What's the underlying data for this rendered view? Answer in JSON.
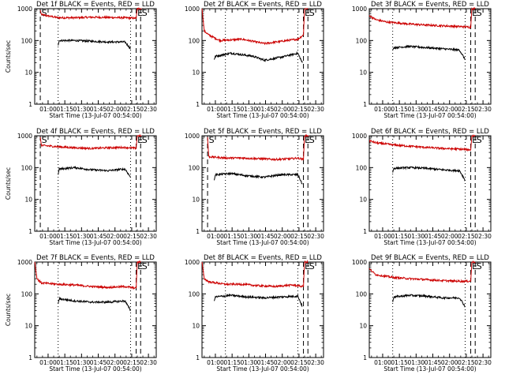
{
  "figure": {
    "panels": [
      {
        "title": "Det 1f BLACK = Events, RED = LLD"
      },
      {
        "title": "Det 2f BLACK = Events, RED = LLD"
      },
      {
        "title": "Det 3f BLACK = Events, RED = LLD"
      },
      {
        "title": "Det 4f BLACK = Events, RED = LLD"
      },
      {
        "title": "Det 5f BLACK = Events, RED = LLD"
      },
      {
        "title": "Det 6f BLACK = Events, RED = LLD"
      },
      {
        "title": "Det 7f BLACK = Events, RED = LLD"
      },
      {
        "title": "Det 8f BLACK = Events, RED = LLD"
      },
      {
        "title": "Det 9f BLACK = Events, RED = LLD"
      }
    ]
  },
  "chart_data": [
    {
      "type": "line",
      "title": "Det 1f BLACK = Events, RED = LLD",
      "ylabel": "Counts/sec",
      "xlabel": "Start Time (13-Jul-07 00:54:00)",
      "x_tick_labels": [
        "01:00",
        "01:15",
        "01:30",
        "01:45",
        "02:00",
        "02:15",
        "02:30"
      ],
      "y_tick_labels": [
        "1",
        "10",
        "100",
        "1000"
      ],
      "xlim_minutes": [
        -6,
        103
      ],
      "ylim": [
        1,
        1000
      ],
      "yscale": "log",
      "markers": [
        {
          "label": "S",
          "x_min": -1,
          "style": "dashed"
        },
        {
          "label": "E",
          "x_min": 85,
          "style": "dashed"
        },
        {
          "label": "S",
          "x_min": 89,
          "style": "dashed"
        }
      ],
      "dotted_lines_x_min": [
        15,
        80
      ],
      "series": [
        {
          "color": "#cc0000",
          "x_min": [
            -1,
            0,
            5,
            15,
            30,
            45,
            60,
            75,
            85,
            86,
            89,
            90
          ],
          "values": [
            900,
            650,
            600,
            520,
            520,
            540,
            530,
            520,
            500,
            1000,
            1000,
            1000
          ]
        },
        {
          "color": "#000000",
          "x_min": [
            15,
            16,
            30,
            45,
            60,
            75,
            80
          ],
          "values": [
            70,
            100,
            100,
            95,
            90,
            90,
            55
          ]
        }
      ]
    },
    {
      "type": "line",
      "title": "Det 2f BLACK = Events, RED = LLD",
      "ylabel": "",
      "xlabel": "Start Time (13-Jul-07 00:54:00)",
      "x_tick_labels": [
        "01:00",
        "01:15",
        "01:30",
        "01:45",
        "02:00",
        "02:15",
        "02:30"
      ],
      "y_tick_labels": [
        "1",
        "10",
        "100",
        "1000"
      ],
      "xlim_minutes": [
        -6,
        103
      ],
      "ylim": [
        1,
        1000
      ],
      "yscale": "log",
      "markers": [
        {
          "label": "E",
          "x_min": 85,
          "style": "dashed"
        },
        {
          "label": "S",
          "x_min": 89,
          "style": "dashed"
        }
      ],
      "dotted_lines_x_min": [
        15,
        80
      ],
      "series": [
        {
          "color": "#cc0000",
          "x_min": [
            -6,
            -4,
            0,
            10,
            30,
            50,
            70,
            80,
            85,
            86,
            89
          ],
          "values": [
            1000,
            200,
            150,
            100,
            110,
            80,
            100,
            110,
            150,
            1000,
            1000
          ]
        },
        {
          "color": "#000000",
          "x_min": [
            5,
            6,
            20,
            40,
            50,
            65,
            80,
            84
          ],
          "values": [
            25,
            32,
            40,
            32,
            24,
            30,
            40,
            20
          ]
        }
      ]
    },
    {
      "type": "line",
      "title": "Det 3f BLACK = Events, RED = LLD",
      "ylabel": "",
      "xlabel": "Start Time (13-Jul-07 00:54:00)",
      "x_tick_labels": [
        "01:00",
        "01:15",
        "01:30",
        "01:45",
        "02:00",
        "02:15",
        "02:30"
      ],
      "y_tick_labels": [
        "1",
        "10",
        "100",
        "1000"
      ],
      "xlim_minutes": [
        -6,
        103
      ],
      "ylim": [
        1,
        1000
      ],
      "yscale": "log",
      "markers": [
        {
          "label": "E",
          "x_min": 85,
          "style": "dashed"
        },
        {
          "label": "S",
          "x_min": 89,
          "style": "dashed"
        }
      ],
      "dotted_lines_x_min": [
        15,
        80
      ],
      "series": [
        {
          "color": "#cc0000",
          "x_min": [
            -6,
            0,
            10,
            30,
            50,
            70,
            80,
            85,
            86,
            89
          ],
          "values": [
            600,
            450,
            380,
            330,
            300,
            280,
            270,
            260,
            1000,
            1000
          ]
        },
        {
          "color": "#000000",
          "x_min": [
            15,
            16,
            30,
            45,
            60,
            75,
            80
          ],
          "values": [
            50,
            60,
            65,
            60,
            55,
            50,
            25
          ]
        }
      ]
    },
    {
      "type": "line",
      "title": "Det 4f BLACK = Events, RED = LLD",
      "ylabel": "Counts/sec",
      "xlabel": "Start Time (13-Jul-07 00:54:00)",
      "x_tick_labels": [
        "01:00",
        "01:15",
        "01:30",
        "01:45",
        "02:00",
        "02:15",
        "02:30"
      ],
      "y_tick_labels": [
        "1",
        "10",
        "100",
        "1000"
      ],
      "xlim_minutes": [
        -6,
        103
      ],
      "ylim": [
        1,
        1000
      ],
      "yscale": "log",
      "markers": [
        {
          "label": "S",
          "x_min": -1,
          "style": "dashed"
        },
        {
          "label": "E",
          "x_min": 85,
          "style": "dashed"
        },
        {
          "label": "S",
          "x_min": 89,
          "style": "dashed"
        }
      ],
      "dotted_lines_x_min": [
        15,
        80
      ],
      "series": [
        {
          "color": "#cc0000",
          "x_min": [
            -1,
            0,
            15,
            30,
            45,
            60,
            75,
            80,
            85,
            86,
            89,
            90
          ],
          "values": [
            900,
            500,
            450,
            420,
            400,
            420,
            430,
            420,
            400,
            1000,
            1000,
            1000
          ]
        },
        {
          "color": "#000000",
          "x_min": [
            15,
            16,
            30,
            45,
            60,
            75,
            80
          ],
          "values": [
            60,
            90,
            100,
            85,
            80,
            90,
            50
          ]
        }
      ]
    },
    {
      "type": "line",
      "title": "Det 5f BLACK = Events, RED = LLD",
      "ylabel": "",
      "xlabel": "Start Time (13-Jul-07 00:54:00)",
      "x_tick_labels": [
        "01:00",
        "01:15",
        "01:30",
        "01:45",
        "02:00",
        "02:15",
        "02:30"
      ],
      "y_tick_labels": [
        "1",
        "10",
        "100",
        "1000"
      ],
      "xlim_minutes": [
        -6,
        103
      ],
      "ylim": [
        1,
        1000
      ],
      "yscale": "log",
      "markers": [
        {
          "label": "S",
          "x_min": -1,
          "style": "dashed"
        },
        {
          "label": "E",
          "x_min": 85,
          "style": "dashed"
        },
        {
          "label": "S",
          "x_min": 89,
          "style": "dashed"
        }
      ],
      "dotted_lines_x_min": [
        15,
        80
      ],
      "series": [
        {
          "color": "#cc0000",
          "x_min": [
            -1,
            0,
            15,
            30,
            45,
            60,
            75,
            80,
            85,
            86,
            89,
            90
          ],
          "values": [
            900,
            220,
            200,
            200,
            190,
            180,
            190,
            200,
            180,
            1000,
            1000,
            1000
          ]
        },
        {
          "color": "#000000",
          "x_min": [
            5,
            6,
            20,
            35,
            50,
            65,
            80,
            84
          ],
          "values": [
            40,
            60,
            65,
            55,
            50,
            60,
            60,
            30
          ]
        }
      ]
    },
    {
      "type": "line",
      "title": "Det 6f BLACK = Events, RED = LLD",
      "ylabel": "",
      "xlabel": "Start Time (13-Jul-07 00:54:00)",
      "x_tick_labels": [
        "01:00",
        "01:15",
        "01:30",
        "01:45",
        "02:00",
        "02:15",
        "02:30"
      ],
      "y_tick_labels": [
        "1",
        "10",
        "100",
        "1000"
      ],
      "xlim_minutes": [
        -6,
        103
      ],
      "ylim": [
        1,
        1000
      ],
      "yscale": "log",
      "markers": [
        {
          "label": "E",
          "x_min": 85,
          "style": "dashed"
        },
        {
          "label": "S",
          "x_min": 89,
          "style": "dashed"
        }
      ],
      "dotted_lines_x_min": [
        15,
        80
      ],
      "series": [
        {
          "color": "#cc0000",
          "x_min": [
            -6,
            0,
            15,
            30,
            45,
            60,
            75,
            85,
            86,
            89
          ],
          "values": [
            700,
            600,
            520,
            470,
            430,
            400,
            380,
            360,
            1000,
            1000
          ]
        },
        {
          "color": "#000000",
          "x_min": [
            15,
            16,
            30,
            45,
            60,
            75,
            80
          ],
          "values": [
            70,
            95,
            100,
            95,
            85,
            80,
            40
          ]
        }
      ]
    },
    {
      "type": "line",
      "title": "Det 7f BLACK = Events, RED = LLD",
      "ylabel": "Counts/sec",
      "xlabel": "Start Time (13-Jul-07 00:54:00)",
      "x_tick_labels": [
        "01:00",
        "01:15",
        "01:30",
        "01:45",
        "02:00",
        "02:15",
        "02:30"
      ],
      "y_tick_labels": [
        "1",
        "10",
        "100",
        "1000"
      ],
      "xlim_minutes": [
        -6,
        103
      ],
      "ylim": [
        1,
        1000
      ],
      "yscale": "log",
      "markers": [
        {
          "label": "E",
          "x_min": 85,
          "style": "dashed"
        },
        {
          "label": "S",
          "x_min": 89,
          "style": "dashed"
        }
      ],
      "dotted_lines_x_min": [
        15,
        80
      ],
      "series": [
        {
          "color": "#cc0000",
          "x_min": [
            -6,
            -4,
            0,
            15,
            30,
            45,
            60,
            75,
            80,
            85,
            86,
            89
          ],
          "values": [
            1000,
            300,
            220,
            200,
            190,
            170,
            160,
            170,
            160,
            150,
            1000,
            1000
          ]
        },
        {
          "color": "#000000",
          "x_min": [
            15,
            16,
            30,
            45,
            60,
            75,
            80
          ],
          "values": [
            50,
            70,
            60,
            55,
            55,
            60,
            30
          ]
        }
      ]
    },
    {
      "type": "line",
      "title": "Det 8f BLACK = Events, RED = LLD",
      "ylabel": "",
      "xlabel": "Start Time (13-Jul-07 00:54:00)",
      "x_tick_labels": [
        "01:00",
        "01:15",
        "01:30",
        "01:45",
        "02:00",
        "02:15",
        "02:30"
      ],
      "y_tick_labels": [
        "1",
        "10",
        "100",
        "1000"
      ],
      "xlim_minutes": [
        -6,
        103
      ],
      "ylim": [
        1,
        1000
      ],
      "yscale": "log",
      "markers": [
        {
          "label": "E",
          "x_min": 85,
          "style": "dashed"
        },
        {
          "label": "S",
          "x_min": 89,
          "style": "dashed"
        }
      ],
      "dotted_lines_x_min": [
        15,
        80
      ],
      "series": [
        {
          "color": "#cc0000",
          "x_min": [
            -6,
            -4,
            0,
            15,
            30,
            45,
            60,
            75,
            80,
            85,
            86,
            89
          ],
          "values": [
            1000,
            300,
            240,
            200,
            200,
            180,
            170,
            190,
            180,
            170,
            1000,
            1000
          ]
        },
        {
          "color": "#000000",
          "x_min": [
            5,
            6,
            20,
            35,
            50,
            65,
            80,
            84
          ],
          "values": [
            60,
            80,
            90,
            80,
            75,
            80,
            85,
            40
          ]
        }
      ]
    },
    {
      "type": "line",
      "title": "Det 9f BLACK = Events, RED = LLD",
      "ylabel": "",
      "xlabel": "Start Time (13-Jul-07 00:54:00)",
      "x_tick_labels": [
        "01:00",
        "01:15",
        "01:30",
        "01:45",
        "02:00",
        "02:15",
        "02:30"
      ],
      "y_tick_labels": [
        "1",
        "10",
        "100",
        "1000"
      ],
      "xlim_minutes": [
        -6,
        103
      ],
      "ylim": [
        1,
        1000
      ],
      "yscale": "log",
      "markers": [
        {
          "label": "E",
          "x_min": 85,
          "style": "dashed"
        },
        {
          "label": "S",
          "x_min": 89,
          "style": "dashed"
        }
      ],
      "dotted_lines_x_min": [
        15,
        80
      ],
      "series": [
        {
          "color": "#cc0000",
          "x_min": [
            -6,
            0,
            15,
            30,
            45,
            60,
            75,
            85,
            86,
            89
          ],
          "values": [
            600,
            400,
            330,
            300,
            280,
            260,
            250,
            250,
            1000,
            1000
          ]
        },
        {
          "color": "#000000",
          "x_min": [
            15,
            16,
            30,
            45,
            60,
            75,
            80
          ],
          "values": [
            55,
            80,
            90,
            85,
            75,
            75,
            40
          ]
        }
      ]
    }
  ]
}
